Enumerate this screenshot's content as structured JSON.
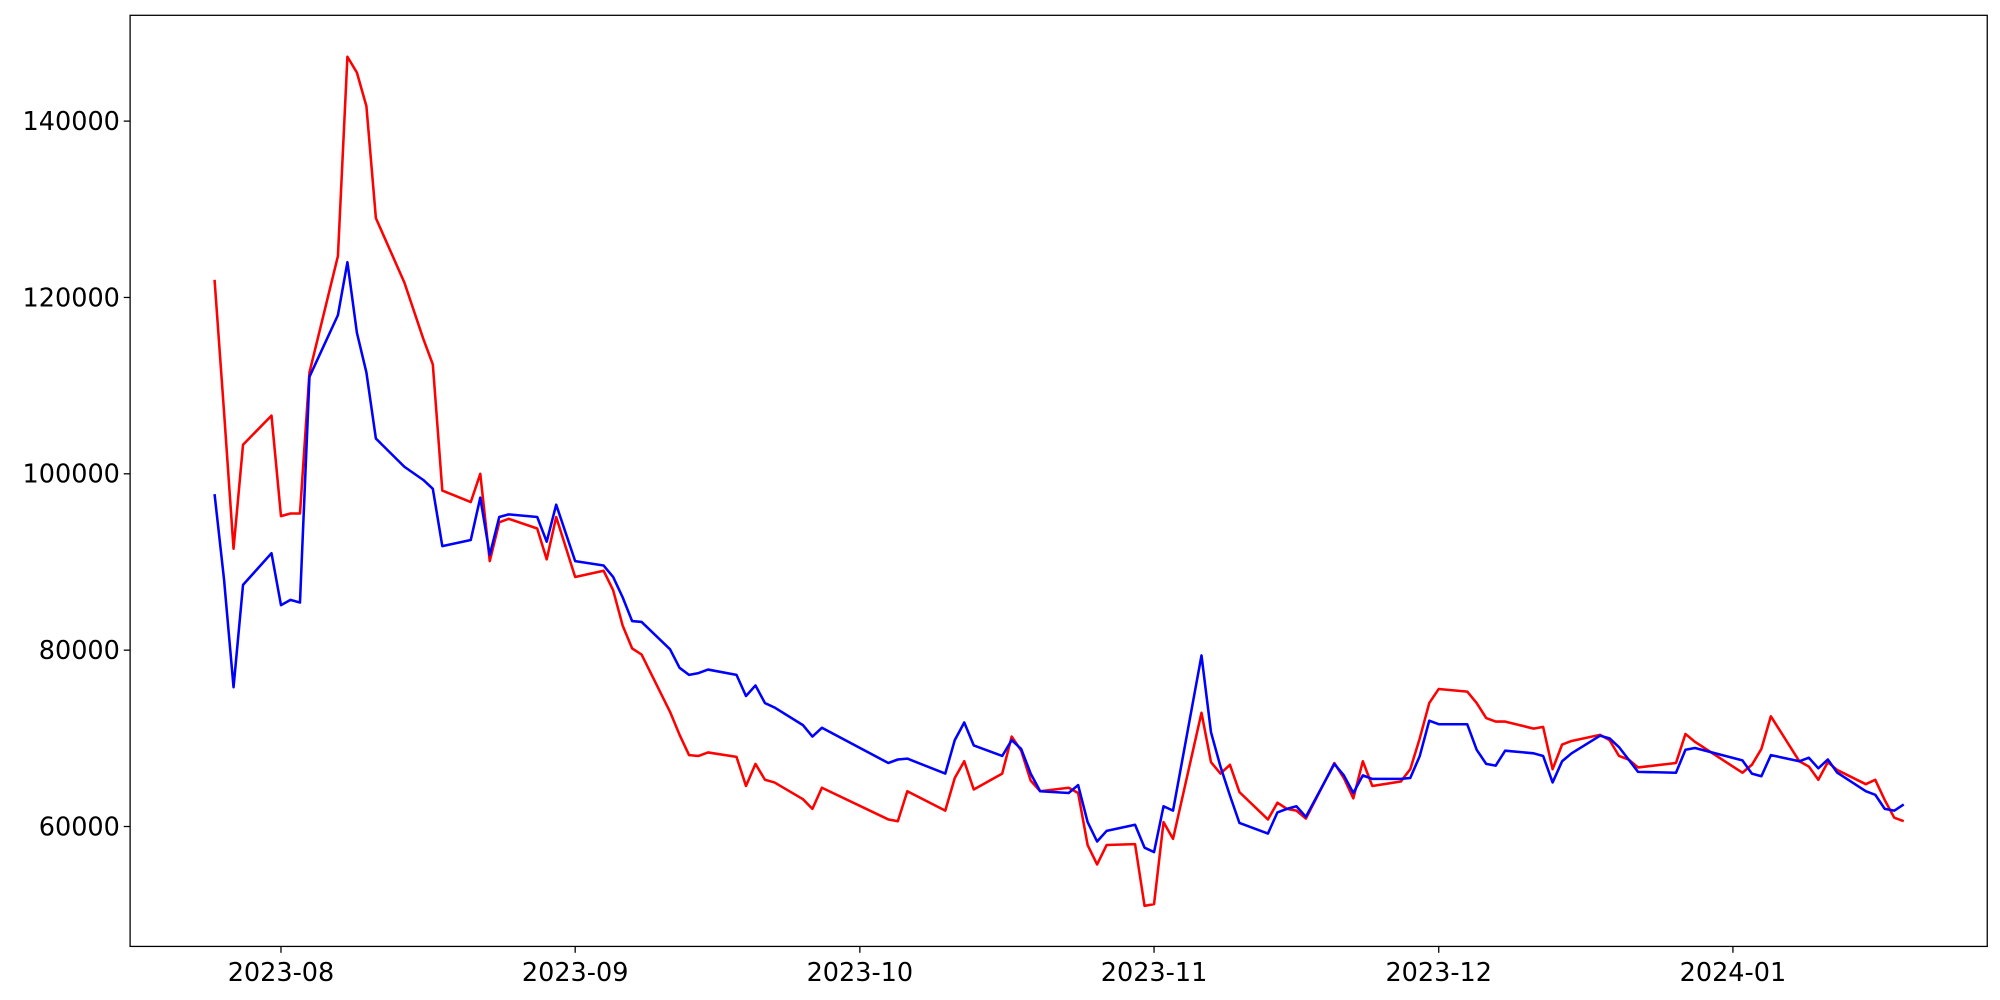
{
  "chart_data": {
    "type": "line",
    "x": [
      -7,
      -6,
      -5,
      -4,
      -1,
      0,
      1,
      2,
      3,
      6,
      7,
      8,
      9,
      10,
      13,
      15,
      16,
      17,
      20,
      21,
      22,
      23,
      24,
      27,
      28,
      29,
      31,
      34,
      35,
      36,
      37,
      38,
      41,
      42,
      43,
      44,
      45,
      48,
      49,
      50,
      51,
      52,
      55,
      56,
      57,
      64,
      65,
      66,
      70,
      71,
      72,
      73,
      76,
      77,
      78,
      79,
      80,
      83,
      84,
      85,
      86,
      87,
      90,
      91,
      92,
      93,
      94,
      97,
      98,
      99,
      100,
      101,
      104,
      105,
      106,
      107,
      108,
      111,
      112,
      113,
      114,
      115,
      118,
      119,
      120,
      121,
      122,
      125,
      126,
      127,
      128,
      129,
      132,
      133,
      134,
      135,
      136,
      139,
      140,
      141,
      142,
      143,
      147,
      148,
      149,
      154,
      155,
      156,
      157,
      160,
      161,
      162,
      163,
      164,
      167,
      168,
      169,
      170,
      171
    ],
    "series": [
      {
        "color": "#ff0000",
        "values": [
          122000,
          107000,
          91500,
          103300,
          106600,
          95200,
          95500,
          95500,
          111500,
          124700,
          147300,
          145500,
          141700,
          129000,
          121700,
          115300,
          112400,
          98100,
          96800,
          100000,
          90100,
          94500,
          94900,
          93800,
          90300,
          95100,
          88300,
          89000,
          86800,
          82800,
          80200,
          79500,
          73000,
          70400,
          68100,
          68000,
          68400,
          67900,
          64600,
          67100,
          65300,
          65000,
          63100,
          62000,
          64400,
          60800,
          60600,
          64000,
          61800,
          65500,
          67400,
          64200,
          66000,
          70200,
          68600,
          65200,
          64000,
          64400,
          63800,
          57900,
          55700,
          57900,
          58000,
          51000,
          51200,
          60500,
          58600,
          72900,
          67300,
          66000,
          67000,
          63900,
          60800,
          62700,
          62000,
          61800,
          60900,
          67200,
          65500,
          63200,
          67400,
          64600,
          65100,
          66500,
          70000,
          74000,
          75600,
          75300,
          74000,
          72300,
          71900,
          71900,
          71100,
          71300,
          66500,
          69300,
          69700,
          70400,
          69800,
          68000,
          67600,
          66700,
          67200,
          70500,
          69600,
          66100,
          67000,
          68800,
          72500,
          67400,
          66800,
          65300,
          67300,
          66400,
          64800,
          65300,
          63000,
          61000,
          60600
        ]
      },
      {
        "color": "#0000ff",
        "values": [
          97700,
          88000,
          75800,
          87400,
          91000,
          85100,
          85700,
          85400,
          111000,
          118000,
          124000,
          116000,
          111500,
          104000,
          100800,
          99300,
          98300,
          91800,
          92500,
          97300,
          90800,
          95100,
          95400,
          95100,
          92300,
          96500,
          90100,
          89600,
          88300,
          86000,
          83300,
          83200,
          80100,
          78000,
          77200,
          77400,
          77800,
          77200,
          74800,
          76000,
          74000,
          73500,
          71500,
          70200,
          71200,
          67200,
          67600,
          67700,
          66000,
          69800,
          71800,
          69200,
          68000,
          69800,
          68800,
          66000,
          64000,
          63800,
          64700,
          60500,
          58300,
          59500,
          60200,
          57600,
          57100,
          62300,
          61800,
          79400,
          70700,
          66800,
          63500,
          60400,
          59200,
          61600,
          62000,
          62300,
          61100,
          67100,
          65800,
          63800,
          65800,
          65400,
          65400,
          65500,
          68000,
          72000,
          71600,
          71600,
          68700,
          67100,
          66900,
          68600,
          68300,
          68000,
          65000,
          67400,
          68300,
          70300,
          70000,
          69000,
          67600,
          66200,
          66100,
          68700,
          68900,
          67500,
          66000,
          65700,
          68100,
          67400,
          67800,
          66600,
          67600,
          66100,
          64000,
          63600,
          62000,
          61800,
          62500
        ]
      }
    ],
    "xlim": [
      -15.9,
      179.8
    ],
    "xticks": [
      {
        "value": 0,
        "label": "2023-08"
      },
      {
        "value": 31,
        "label": "2023-09"
      },
      {
        "value": 61,
        "label": "2023-10"
      },
      {
        "value": 92,
        "label": "2023-11"
      },
      {
        "value": 122,
        "label": "2023-12"
      },
      {
        "value": 153,
        "label": "2024-01"
      }
    ],
    "ylim": [
      46400,
      152000
    ],
    "yticks": [
      60000,
      80000,
      100000,
      120000,
      140000
    ]
  }
}
